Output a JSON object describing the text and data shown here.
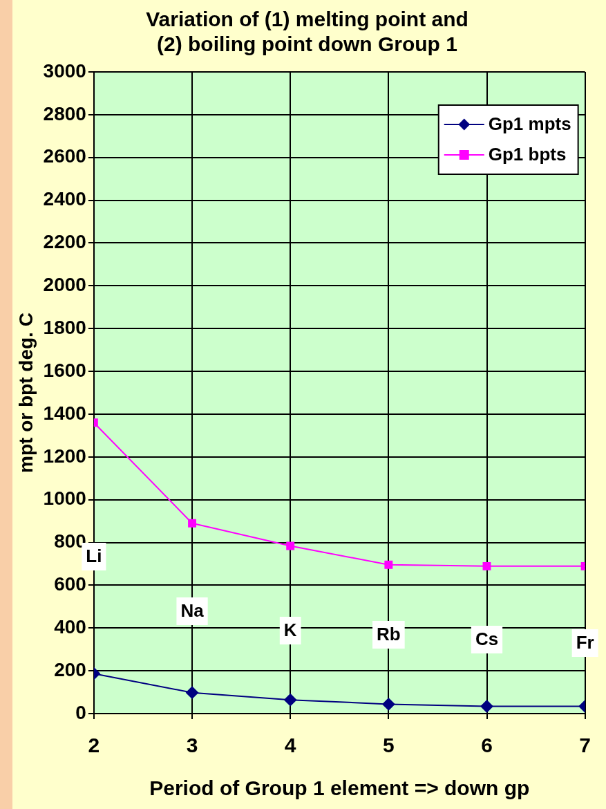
{
  "chart_data": {
    "type": "line",
    "title": "Variation of (1) melting point and\n(2) boiling point down Group 1",
    "xlabel": "Period of Group 1 element => down gp",
    "ylabel": "mpt or bpt deg. C",
    "x": [
      2,
      3,
      4,
      5,
      6,
      7
    ],
    "series": [
      {
        "name": "Gp1 mpts",
        "color": "#000080",
        "marker": "diamond",
        "values": [
          187,
          98,
          64,
          44,
          34,
          34
        ]
      },
      {
        "name": "Gp1 bpts",
        "color": "#ff00ff",
        "marker": "square",
        "values": [
          1360,
          890,
          784,
          696,
          689,
          689
        ]
      }
    ],
    "xlim": [
      2,
      7
    ],
    "xticks": [
      2,
      3,
      4,
      5,
      6,
      7
    ],
    "ylim": [
      0,
      3000
    ],
    "yticks": [
      0,
      200,
      400,
      600,
      800,
      1000,
      1200,
      1400,
      1600,
      1800,
      2000,
      2200,
      2400,
      2600,
      2800,
      3000
    ],
    "grid": true,
    "legend": "top right",
    "line_style": "solid",
    "annotations": [
      "Li",
      "Na",
      "K",
      "Rb",
      "Cs",
      "Fr"
    ]
  }
}
